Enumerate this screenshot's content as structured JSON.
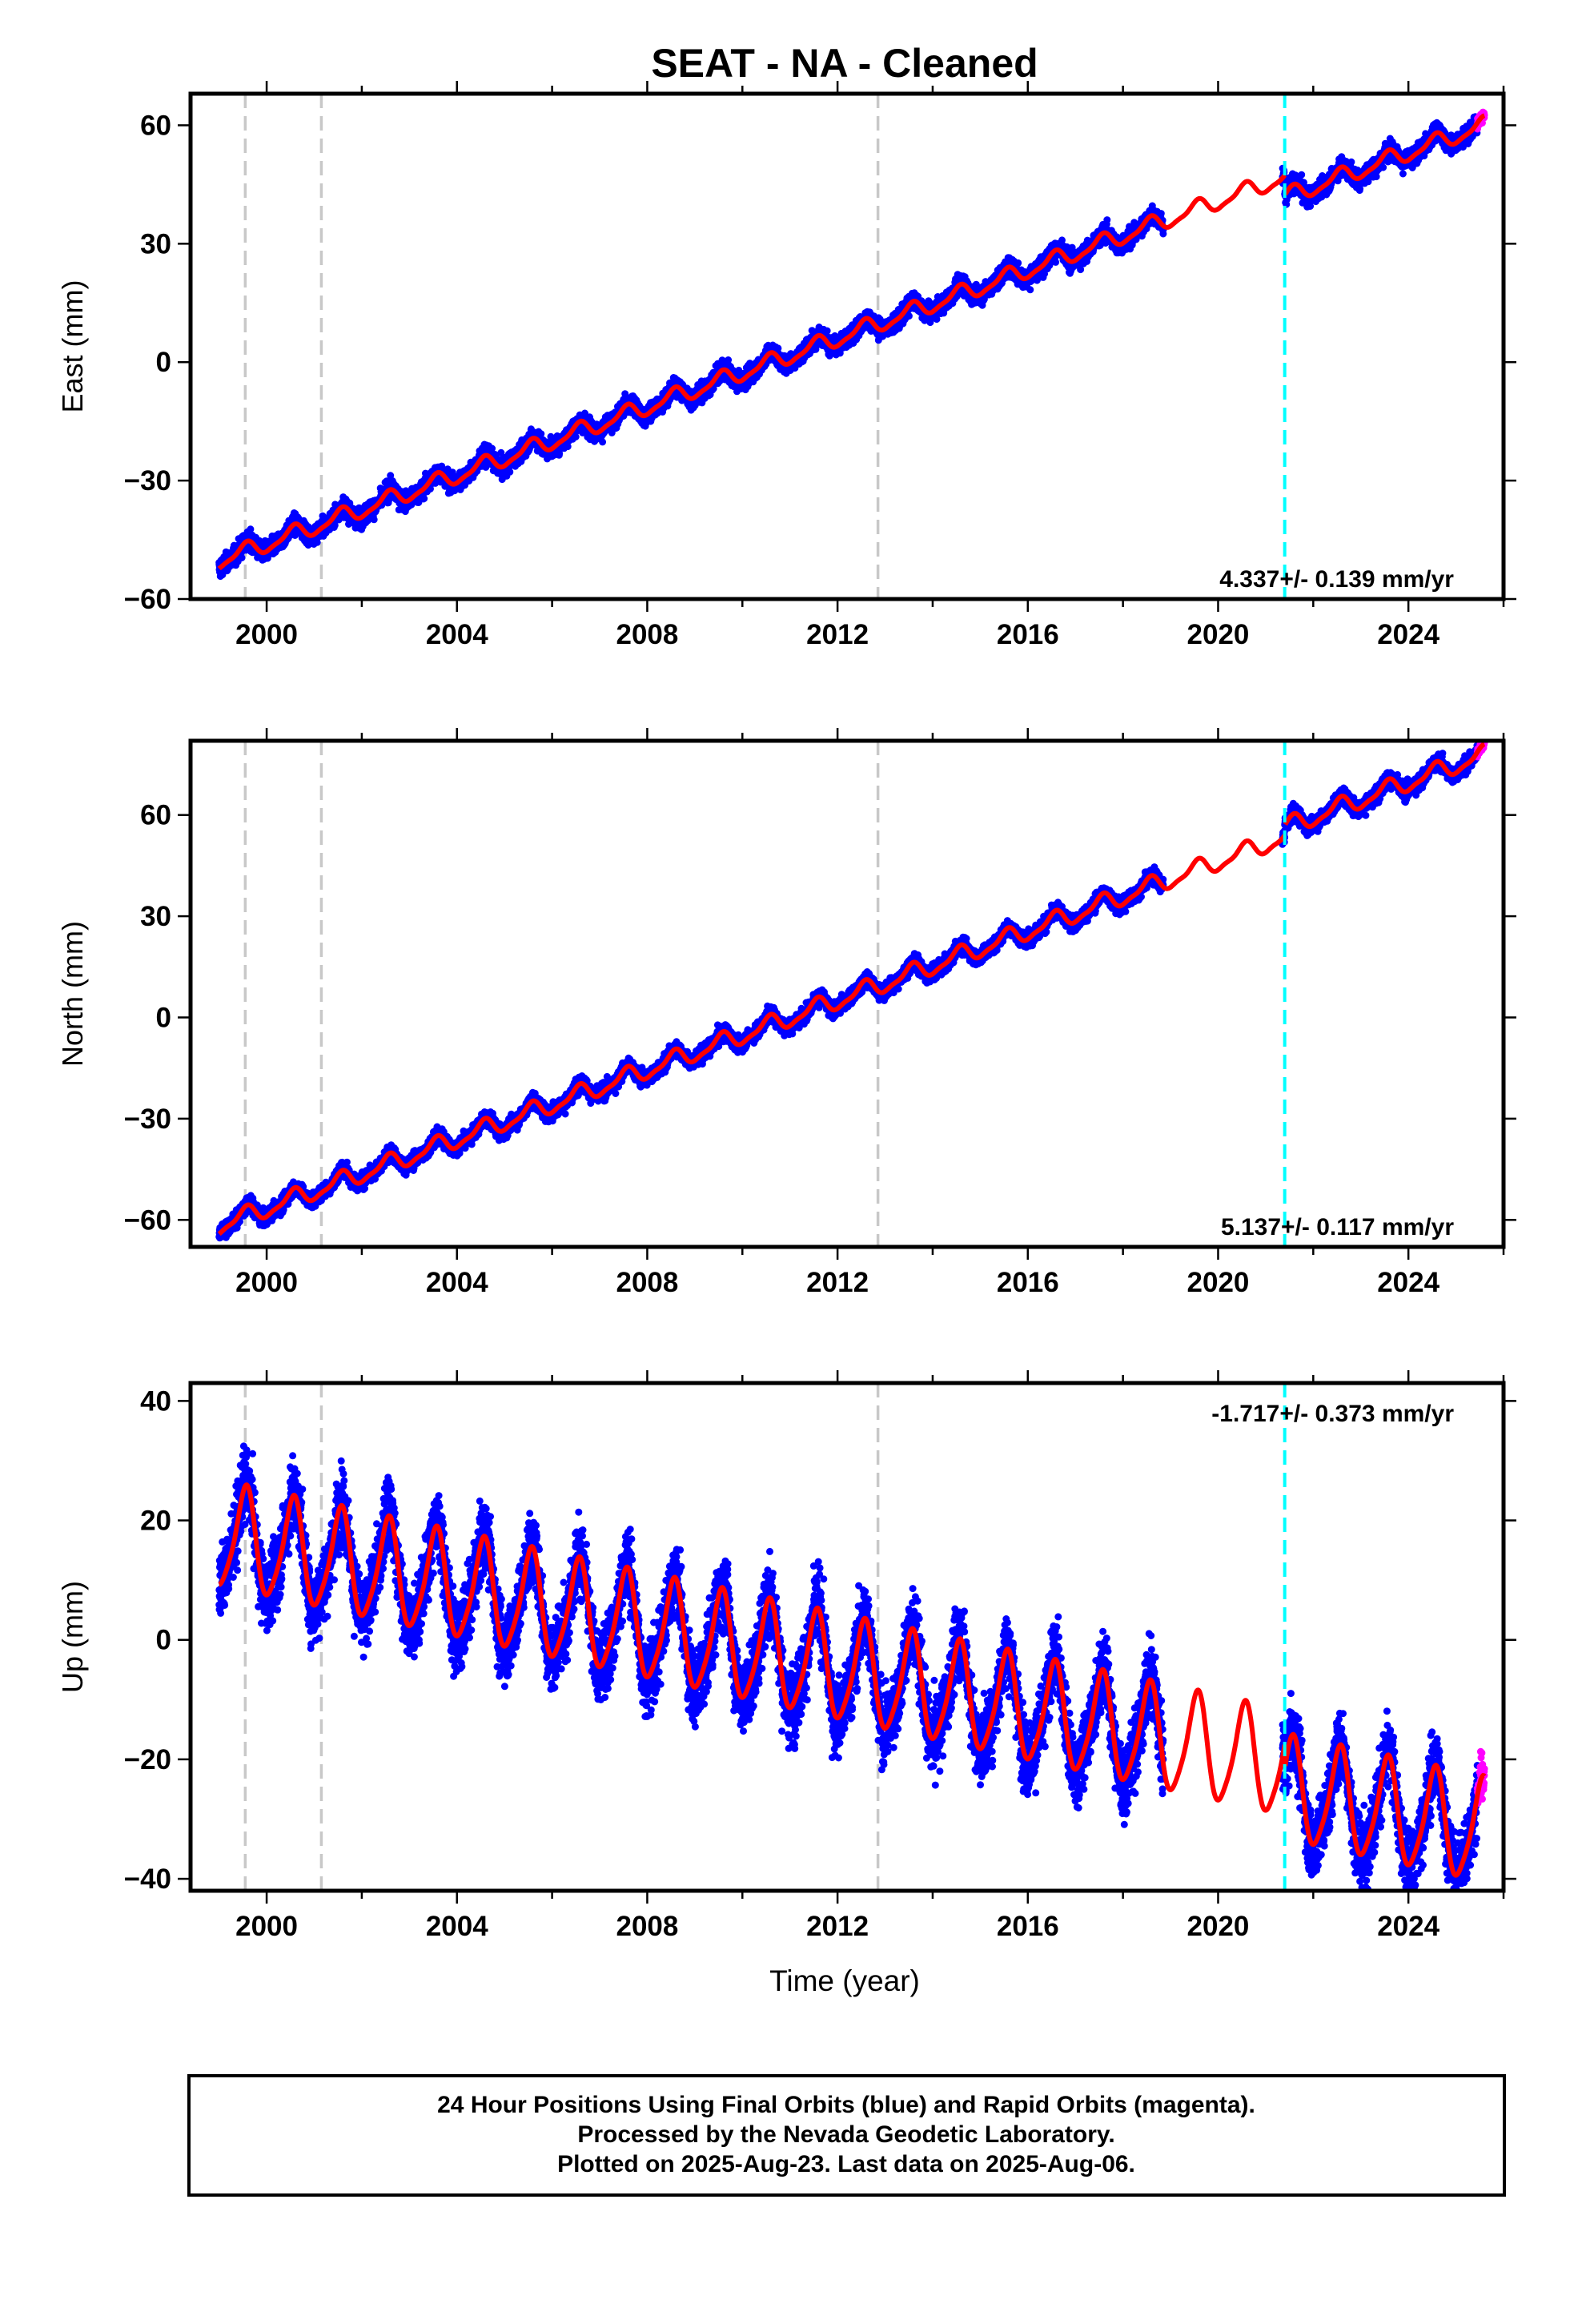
{
  "chart_data": {
    "type": "scatter",
    "title": "SEAT  - NA - Cleaned",
    "xlabel": "Time (year)",
    "xlim": [
      1998.4,
      2026.0
    ],
    "x_ticks": [
      2000,
      2004,
      2008,
      2012,
      2016,
      2020,
      2024
    ],
    "series_names": {
      "observed": "24 Hour Positions (Final Orbits, blue)",
      "rapid": "Rapid Orbits (magenta)",
      "model": "Model fit (red)"
    },
    "colors": {
      "final_orbits": "#0000ff",
      "rapid_orbits": "#ff00ff",
      "model": "#ff0000",
      "equipment_change": "#c8c8c8",
      "earthquake": "#00ffff"
    },
    "equipment_change_epochs": [
      1999.55,
      2001.15,
      2012.85
    ],
    "earthquake_epochs": [
      2021.4
    ],
    "data_span": [
      1999.0,
      2025.6
    ],
    "final_data_gap": [
      2018.85,
      2021.35
    ],
    "rapid_orbit_start": 2025.45,
    "panels": [
      {
        "name": "east",
        "ylabel": "East (mm)",
        "ylim": [
          -60,
          68
        ],
        "y_ticks": [
          -60,
          -30,
          0,
          30,
          60
        ],
        "rate_label": "4.337+/- 0.139 mm/yr",
        "rate_position": "bottom-right",
        "trend_slope_mm_yr": 4.337,
        "trend_value_at_2012": 6.0,
        "offset_after_2021_4_mm": -5.0,
        "annual_amplitude_mm": 2.0,
        "semiannual_amplitude_mm": 0.6,
        "noise_sd_mm": 1.6,
        "end_value_mm": 60
      },
      {
        "name": "north",
        "ylabel": "North (mm)",
        "ylim": [
          -68,
          82
        ],
        "y_ticks": [
          -60,
          -30,
          0,
          30,
          60
        ],
        "rate_label": "5.137+/- 0.117 mm/yr",
        "rate_position": "bottom-right",
        "trend_slope_mm_yr": 5.137,
        "trend_value_at_2012": 5.0,
        "offset_after_2021_4_mm": 3.0,
        "annual_amplitude_mm": 2.5,
        "semiannual_amplitude_mm": 0.8,
        "noise_sd_mm": 1.6,
        "end_value_mm": 78
      },
      {
        "name": "up",
        "ylabel": "Up (mm)",
        "ylim": [
          -42,
          43
        ],
        "y_ticks": [
          -40,
          -20,
          0,
          20,
          40
        ],
        "rate_label": "-1.717+/- 0.373 mm/yr",
        "rate_position": "top-right",
        "trend_slope_mm_yr": -1.717,
        "trend_value_at_2012": -5.0,
        "offset_after_2021_4_mm": -4.0,
        "annual_amplitude_mm": 8.5,
        "semiannual_amplitude_mm": 1.5,
        "noise_sd_mm": 4.2,
        "end_value_mm": -18
      }
    ]
  },
  "footer": {
    "line1": "24 Hour Positions Using Final Orbits (blue) and Rapid Orbits (magenta).",
    "line2": "Processed by the Nevada Geodetic Laboratory.",
    "line3": "Plotted on 2025-Aug-23. Last data on 2025-Aug-06."
  }
}
